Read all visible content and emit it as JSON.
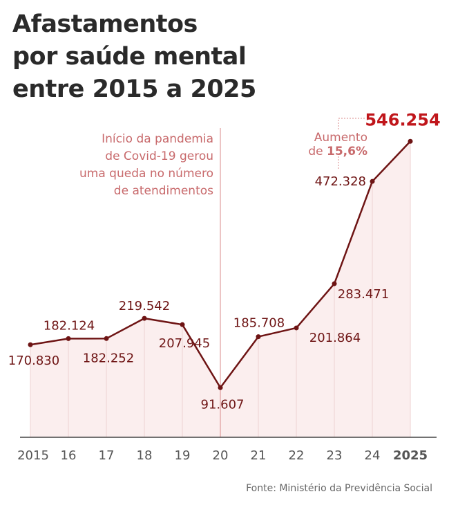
{
  "title": [
    "Afastamentos",
    "por saúde mental",
    "entre 2015 a 2025"
  ],
  "source": "Fonte: Ministério da Previdência Social",
  "colors": {
    "line": "#6e1414",
    "highlight": "#c0161b",
    "annotation": "#c86a6c",
    "fill": "#fbeeee"
  },
  "chart_data": {
    "type": "area",
    "categories": [
      "2015",
      "16",
      "17",
      "18",
      "19",
      "20",
      "21",
      "22",
      "23",
      "24",
      "2025"
    ],
    "values": [
      170830,
      182124,
      182252,
      219542,
      207945,
      91607,
      185708,
      201864,
      283471,
      472328,
      546254
    ],
    "value_labels": [
      "170.830",
      "182.124",
      "182.252",
      "219.542",
      "207.945",
      "91.607",
      "185.708",
      "201.864",
      "283.471",
      "472.328",
      "546.254"
    ],
    "ylim": [
      0,
      600000
    ],
    "annotations": {
      "pandemic": [
        "Início da pandemia",
        "de Covid-19 gerou",
        "uma queda no número",
        "de atendimentos"
      ],
      "increase_prefix": "Aumento",
      "increase_de": "de",
      "increase_value": "15,6%"
    }
  }
}
